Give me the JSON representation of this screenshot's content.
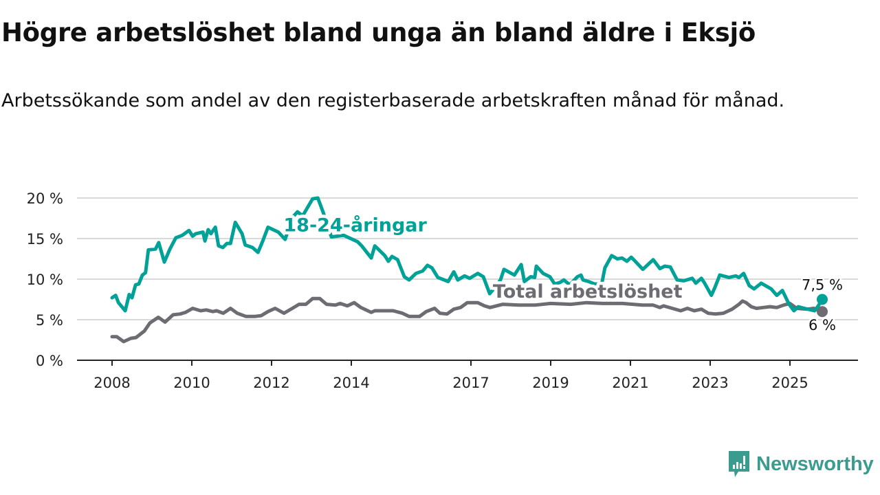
{
  "title": "Högre arbetslöshet bland unga än bland äldre i Eksjö",
  "subtitle": "Arbetssökande som andel av den registerbaserade arbetskraften månad för månad.",
  "brand": "Newsworthy",
  "chart_data": {
    "type": "line",
    "ylim": [
      0,
      20
    ],
    "xlim": [
      2007.2,
      2027.0
    ],
    "y_ticks": [
      {
        "v": 0,
        "label": "0 %"
      },
      {
        "v": 5,
        "label": "5 %"
      },
      {
        "v": 10,
        "label": "10 %"
      },
      {
        "v": 15,
        "label": "15 %"
      },
      {
        "v": 20,
        "label": "20 %"
      }
    ],
    "x_ticks": [
      {
        "v": 2008,
        "label": "2008"
      },
      {
        "v": 2010,
        "label": "2010"
      },
      {
        "v": 2012,
        "label": "2012"
      },
      {
        "v": 2014,
        "label": "2014"
      },
      {
        "v": 2017,
        "label": "2017"
      },
      {
        "v": 2019,
        "label": "2019"
      },
      {
        "v": 2021,
        "label": "2021"
      },
      {
        "v": 2023,
        "label": "2023"
      },
      {
        "v": 2025,
        "label": "2025"
      }
    ],
    "grid": true,
    "series": [
      {
        "name": "18-24-åringar",
        "color": "#00a197",
        "end_label": "7,5 %",
        "points": [
          [
            2008,
            7.7
          ],
          [
            2008.09,
            8.0
          ],
          [
            2008.16,
            7.1
          ],
          [
            2008.33,
            6.1
          ],
          [
            2008.43,
            8.1
          ],
          [
            2008.5,
            7.7
          ],
          [
            2008.59,
            9.3
          ],
          [
            2008.67,
            9.4
          ],
          [
            2008.76,
            10.5
          ],
          [
            2008.84,
            10.8
          ],
          [
            2008.91,
            13.6
          ],
          [
            2009.09,
            13.7
          ],
          [
            2009.17,
            14.5
          ],
          [
            2009.31,
            12.1
          ],
          [
            2009.45,
            13.7
          ],
          [
            2009.6,
            15.1
          ],
          [
            2009.76,
            15.4
          ],
          [
            2009.93,
            16.0
          ],
          [
            2010.02,
            15.3
          ],
          [
            2010.1,
            15.6
          ],
          [
            2010.28,
            15.8
          ],
          [
            2010.33,
            14.7
          ],
          [
            2010.41,
            16.1
          ],
          [
            2010.48,
            15.6
          ],
          [
            2010.59,
            16.4
          ],
          [
            2010.67,
            14.1
          ],
          [
            2010.78,
            13.9
          ],
          [
            2010.88,
            14.4
          ],
          [
            2010.97,
            14.4
          ],
          [
            2011.09,
            17.0
          ],
          [
            2011.26,
            15.6
          ],
          [
            2011.34,
            14.2
          ],
          [
            2011.52,
            13.9
          ],
          [
            2011.66,
            13.3
          ],
          [
            2011.78,
            14.7
          ],
          [
            2011.91,
            16.4
          ],
          [
            2012.17,
            15.8
          ],
          [
            2012.34,
            14.9
          ],
          [
            2012.52,
            17.6
          ],
          [
            2012.65,
            18.3
          ],
          [
            2012.78,
            17.8
          ],
          [
            2013.03,
            19.9
          ],
          [
            2013.16,
            20.0
          ],
          [
            2013.29,
            18.3
          ],
          [
            2013.5,
            15.2
          ],
          [
            2013.81,
            15.4
          ],
          [
            2014.16,
            14.6
          ],
          [
            2014.26,
            14.1
          ],
          [
            2014.5,
            12.6
          ],
          [
            2014.59,
            14.1
          ],
          [
            2014.84,
            12.9
          ],
          [
            2014.93,
            12.2
          ],
          [
            2015.02,
            12.8
          ],
          [
            2015.16,
            12.4
          ],
          [
            2015.33,
            10.3
          ],
          [
            2015.45,
            9.9
          ],
          [
            2015.62,
            10.7
          ],
          [
            2015.79,
            11.0
          ],
          [
            2015.91,
            11.7
          ],
          [
            2016.02,
            11.4
          ],
          [
            2016.17,
            10.2
          ],
          [
            2016.43,
            9.7
          ],
          [
            2016.57,
            10.9
          ],
          [
            2016.67,
            9.9
          ],
          [
            2016.84,
            10.4
          ],
          [
            2016.97,
            10.1
          ],
          [
            2017.17,
            10.7
          ],
          [
            2017.31,
            10.3
          ],
          [
            2017.47,
            8.2
          ],
          [
            2017.57,
            8.8
          ],
          [
            2017.74,
            9.9
          ],
          [
            2017.83,
            11.2
          ],
          [
            2018.09,
            10.5
          ],
          [
            2018.26,
            11.8
          ],
          [
            2018.34,
            9.7
          ],
          [
            2018.5,
            10.3
          ],
          [
            2018.6,
            10.2
          ],
          [
            2018.64,
            11.6
          ],
          [
            2018.81,
            10.7
          ],
          [
            2018.98,
            10.3
          ],
          [
            2019.1,
            9.4
          ],
          [
            2019.24,
            9.6
          ],
          [
            2019.33,
            9.9
          ],
          [
            2019.48,
            9.3
          ],
          [
            2019.67,
            10.3
          ],
          [
            2019.76,
            10.5
          ],
          [
            2019.81,
            9.9
          ],
          [
            2019.95,
            9.7
          ],
          [
            2020.1,
            9.4
          ],
          [
            2020.28,
            9.4
          ],
          [
            2020.36,
            11.4
          ],
          [
            2020.53,
            12.9
          ],
          [
            2020.67,
            12.5
          ],
          [
            2020.79,
            12.6
          ],
          [
            2020.91,
            12.2
          ],
          [
            2021.02,
            12.7
          ],
          [
            2021.14,
            12.1
          ],
          [
            2021.31,
            11.2
          ],
          [
            2021.57,
            12.4
          ],
          [
            2021.74,
            11.3
          ],
          [
            2021.86,
            11.6
          ],
          [
            2022.0,
            11.5
          ],
          [
            2022.17,
            9.9
          ],
          [
            2022.34,
            9.8
          ],
          [
            2022.55,
            10.1
          ],
          [
            2022.64,
            9.5
          ],
          [
            2022.78,
            10.1
          ],
          [
            2022.86,
            9.5
          ],
          [
            2023.03,
            8.0
          ],
          [
            2023.12,
            9.0
          ],
          [
            2023.24,
            10.5
          ],
          [
            2023.47,
            10.2
          ],
          [
            2023.64,
            10.4
          ],
          [
            2023.72,
            10.2
          ],
          [
            2023.84,
            10.7
          ],
          [
            2023.98,
            9.2
          ],
          [
            2024.1,
            8.8
          ],
          [
            2024.28,
            9.5
          ],
          [
            2024.53,
            8.8
          ],
          [
            2024.67,
            8.0
          ],
          [
            2024.81,
            8.6
          ],
          [
            2024.98,
            6.9
          ],
          [
            2025.1,
            6.1
          ],
          [
            2025.21,
            6.6
          ],
          [
            2025.36,
            6.4
          ],
          [
            2025.53,
            6.2
          ],
          [
            2025.62,
            6.1
          ],
          [
            2025.71,
            6.7
          ],
          [
            2025.81,
            7.5
          ]
        ]
      },
      {
        "name": "Total arbetslöshet",
        "color": "#6e6c72",
        "end_label": "6 %",
        "points": [
          [
            2008,
            2.9
          ],
          [
            2008.12,
            2.9
          ],
          [
            2008.29,
            2.3
          ],
          [
            2008.47,
            2.7
          ],
          [
            2008.6,
            2.8
          ],
          [
            2008.81,
            3.6
          ],
          [
            2008.95,
            4.6
          ],
          [
            2009.16,
            5.3
          ],
          [
            2009.33,
            4.7
          ],
          [
            2009.53,
            5.6
          ],
          [
            2009.71,
            5.7
          ],
          [
            2009.84,
            5.9
          ],
          [
            2010.02,
            6.4
          ],
          [
            2010.22,
            6.1
          ],
          [
            2010.36,
            6.2
          ],
          [
            2010.53,
            6.0
          ],
          [
            2010.62,
            6.1
          ],
          [
            2010.79,
            5.8
          ],
          [
            2010.97,
            6.4
          ],
          [
            2011.14,
            5.8
          ],
          [
            2011.36,
            5.4
          ],
          [
            2011.57,
            5.4
          ],
          [
            2011.74,
            5.5
          ],
          [
            2011.91,
            6.0
          ],
          [
            2012.09,
            6.4
          ],
          [
            2012.31,
            5.8
          ],
          [
            2012.52,
            6.4
          ],
          [
            2012.69,
            6.9
          ],
          [
            2012.86,
            6.9
          ],
          [
            2013.03,
            7.6
          ],
          [
            2013.21,
            7.6
          ],
          [
            2013.38,
            6.9
          ],
          [
            2013.6,
            6.8
          ],
          [
            2013.72,
            7.0
          ],
          [
            2013.9,
            6.7
          ],
          [
            2014.07,
            7.1
          ],
          [
            2014.24,
            6.5
          ],
          [
            2014.5,
            5.9
          ],
          [
            2014.59,
            6.1
          ],
          [
            2014.84,
            6.1
          ],
          [
            2015.05,
            6.1
          ],
          [
            2015.28,
            5.8
          ],
          [
            2015.45,
            5.4
          ],
          [
            2015.71,
            5.4
          ],
          [
            2015.88,
            6.0
          ],
          [
            2016.09,
            6.4
          ],
          [
            2016.22,
            5.8
          ],
          [
            2016.4,
            5.7
          ],
          [
            2016.57,
            6.3
          ],
          [
            2016.74,
            6.5
          ],
          [
            2016.91,
            7.1
          ],
          [
            2017.17,
            7.1
          ],
          [
            2017.34,
            6.7
          ],
          [
            2017.48,
            6.5
          ],
          [
            2017.8,
            6.9
          ],
          [
            2018.2,
            6.8
          ],
          [
            2018.6,
            6.8
          ],
          [
            2019.0,
            7.0
          ],
          [
            2019.5,
            6.9
          ],
          [
            2019.9,
            7.1
          ],
          [
            2020.3,
            7.0
          ],
          [
            2020.8,
            7.0
          ],
          [
            2021.3,
            6.8
          ],
          [
            2021.57,
            6.8
          ],
          [
            2021.74,
            6.5
          ],
          [
            2021.83,
            6.7
          ],
          [
            2022.26,
            6.1
          ],
          [
            2022.43,
            6.4
          ],
          [
            2022.6,
            6.1
          ],
          [
            2022.78,
            6.3
          ],
          [
            2022.95,
            5.8
          ],
          [
            2023.12,
            5.7
          ],
          [
            2023.33,
            5.8
          ],
          [
            2023.55,
            6.3
          ],
          [
            2023.72,
            6.9
          ],
          [
            2023.81,
            7.3
          ],
          [
            2023.9,
            7.1
          ],
          [
            2024.03,
            6.6
          ],
          [
            2024.16,
            6.4
          ],
          [
            2024.33,
            6.5
          ],
          [
            2024.5,
            6.6
          ],
          [
            2024.67,
            6.5
          ],
          [
            2024.84,
            6.8
          ],
          [
            2025.0,
            7.0
          ],
          [
            2025.17,
            6.4
          ],
          [
            2025.43,
            6.3
          ],
          [
            2025.6,
            6.4
          ],
          [
            2025.81,
            6.0
          ]
        ]
      }
    ],
    "inline_labels": [
      {
        "series": 0,
        "text": "18-24-åringar",
        "at": [
          2012.3,
          15.9
        ]
      },
      {
        "series": 1,
        "text": "Total arbetslöshet",
        "at": [
          2017.55,
          7.7
        ]
      }
    ]
  }
}
